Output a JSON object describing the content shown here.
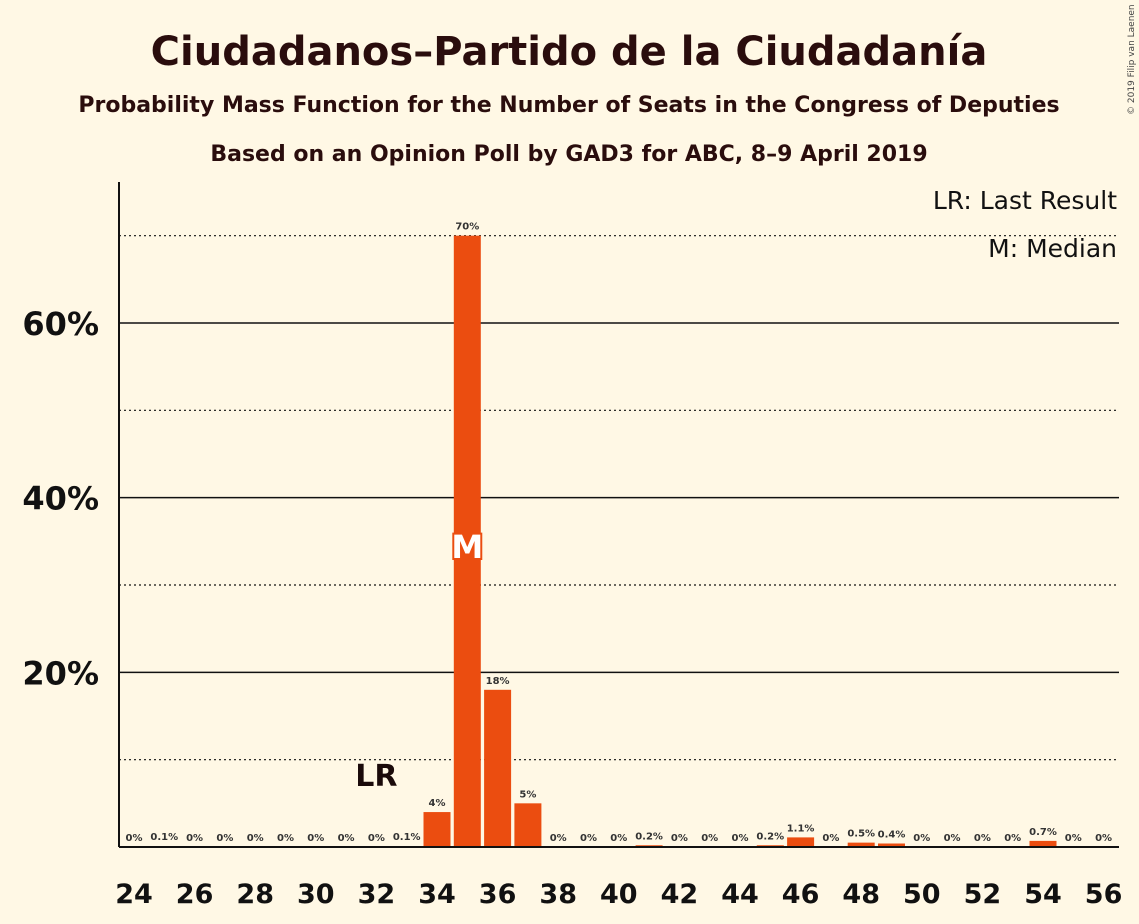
{
  "chart_data": {
    "type": "bar",
    "title": "Ciudadanos–Partido de la Ciudadanía",
    "subtitle": "Probability Mass Function for the Number of Seats in the Congress of Deputies",
    "subtitle2": "Based on an Opinion Poll by GAD3 for ABC, 8–9 April 2019",
    "copyright": "© 2019 Filip van Laenen",
    "legend": {
      "lr": "LR: Last Result",
      "median": "M: Median",
      "placement": "top-right"
    },
    "ylim": [
      0,
      76
    ],
    "yticks": [
      {
        "value": 20,
        "label": "20%"
      },
      {
        "value": 40,
        "label": "40%"
      },
      {
        "value": 60,
        "label": "60%"
      }
    ],
    "minor_gridlines": [
      10,
      30,
      50,
      70
    ],
    "xticks": [
      "24",
      "26",
      "28",
      "30",
      "32",
      "34",
      "36",
      "38",
      "40",
      "42",
      "44",
      "46",
      "48",
      "50",
      "52",
      "54",
      "56"
    ],
    "bars": [
      {
        "seats": 24,
        "value": 0,
        "label": "0%"
      },
      {
        "seats": 25,
        "value": 0.1,
        "label": "0.1%"
      },
      {
        "seats": 26,
        "value": 0,
        "label": "0%"
      },
      {
        "seats": 27,
        "value": 0,
        "label": "0%"
      },
      {
        "seats": 28,
        "value": 0,
        "label": "0%"
      },
      {
        "seats": 29,
        "value": 0,
        "label": "0%"
      },
      {
        "seats": 30,
        "value": 0,
        "label": "0%"
      },
      {
        "seats": 31,
        "value": 0,
        "label": "0%"
      },
      {
        "seats": 32,
        "value": 0,
        "label": "0%"
      },
      {
        "seats": 33,
        "value": 0.1,
        "label": "0.1%"
      },
      {
        "seats": 34,
        "value": 4,
        "label": "4%"
      },
      {
        "seats": 35,
        "value": 70,
        "label": "70%"
      },
      {
        "seats": 36,
        "value": 18,
        "label": "18%"
      },
      {
        "seats": 37,
        "value": 5,
        "label": "5%"
      },
      {
        "seats": 38,
        "value": 0,
        "label": "0%"
      },
      {
        "seats": 39,
        "value": 0,
        "label": "0%"
      },
      {
        "seats": 40,
        "value": 0,
        "label": "0%"
      },
      {
        "seats": 41,
        "value": 0.2,
        "label": "0.2%"
      },
      {
        "seats": 42,
        "value": 0,
        "label": "0%"
      },
      {
        "seats": 43,
        "value": 0,
        "label": "0%"
      },
      {
        "seats": 44,
        "value": 0,
        "label": "0%"
      },
      {
        "seats": 45,
        "value": 0.2,
        "label": "0.2%"
      },
      {
        "seats": 46,
        "value": 1.1,
        "label": "1.1%"
      },
      {
        "seats": 47,
        "value": 0,
        "label": "0%"
      },
      {
        "seats": 48,
        "value": 0.5,
        "label": "0.5%"
      },
      {
        "seats": 49,
        "value": 0.4,
        "label": "0.4%"
      },
      {
        "seats": 50,
        "value": 0,
        "label": "0%"
      },
      {
        "seats": 51,
        "value": 0,
        "label": "0%"
      },
      {
        "seats": 52,
        "value": 0,
        "label": "0%"
      },
      {
        "seats": 53,
        "value": 0,
        "label": "0%"
      },
      {
        "seats": 54,
        "value": 0.7,
        "label": "0.7%"
      },
      {
        "seats": 55,
        "value": 0,
        "label": "0%"
      },
      {
        "seats": 56,
        "value": 0,
        "label": "0%"
      }
    ],
    "last_result": {
      "seats": 32,
      "label": "LR"
    },
    "median": {
      "seats": 35,
      "label": "M"
    },
    "colors": {
      "bar": "#eb4d10",
      "background": "#fff8e5",
      "axis": "#111111"
    },
    "grid": true
  }
}
